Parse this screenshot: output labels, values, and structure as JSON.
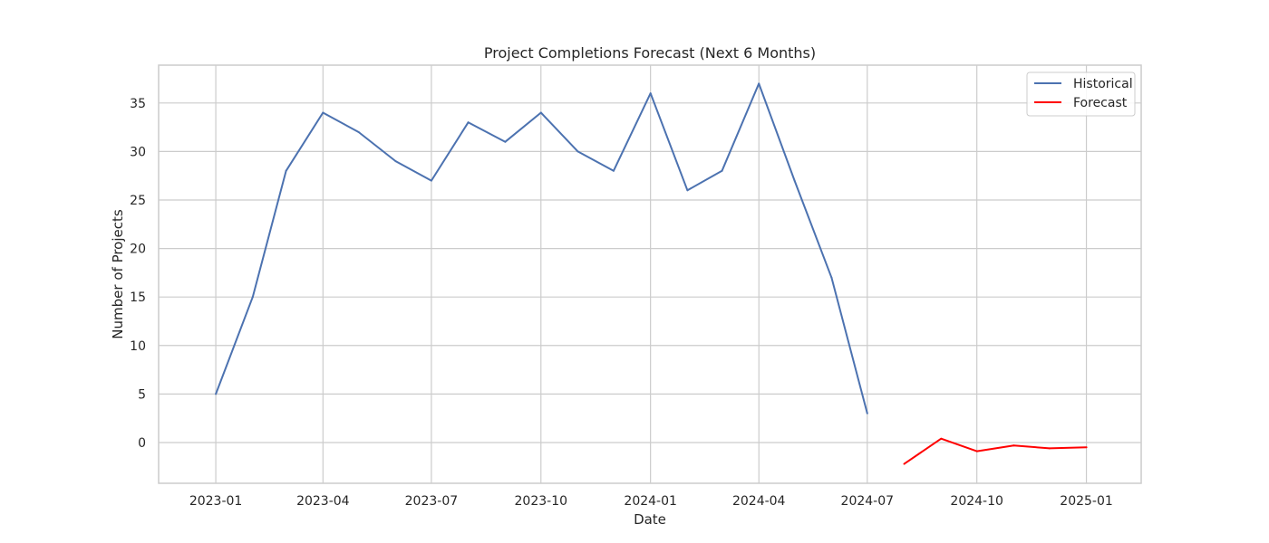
{
  "chart_data": {
    "type": "line",
    "title": "Project Completions Forecast (Next 6 Months)",
    "xlabel": "Date",
    "ylabel": "Number of Projects",
    "x_ticks": [
      "2023-01",
      "2023-04",
      "2023-07",
      "2023-10",
      "2024-01",
      "2024-04",
      "2024-07",
      "2024-10",
      "2025-01"
    ],
    "y_ticks": [
      0,
      5,
      10,
      15,
      20,
      25,
      30,
      35
    ],
    "xlim": [
      "2022-11-14",
      "2025-02-16"
    ],
    "ylim": [
      -4.2,
      38.9
    ],
    "grid": true,
    "legend_position": "top-right",
    "series": [
      {
        "name": "Historical",
        "color": "#4c72b0",
        "x": [
          "2023-01-01",
          "2023-02-01",
          "2023-03-01",
          "2023-04-01",
          "2023-05-01",
          "2023-06-01",
          "2023-07-01",
          "2023-08-01",
          "2023-09-01",
          "2023-10-01",
          "2023-11-01",
          "2023-12-01",
          "2024-01-01",
          "2024-02-01",
          "2024-03-01",
          "2024-04-01",
          "2024-05-01",
          "2024-06-01",
          "2024-07-01"
        ],
        "y": [
          5,
          15,
          28,
          34,
          32,
          29,
          27,
          33,
          31,
          34,
          30,
          28,
          36,
          26,
          28,
          37,
          27,
          17,
          3
        ]
      },
      {
        "name": "Forecast",
        "color": "#ff0000",
        "x": [
          "2024-08-01",
          "2024-09-01",
          "2024-10-01",
          "2024-11-01",
          "2024-12-01",
          "2025-01-01"
        ],
        "y": [
          -2.2,
          0.4,
          -0.9,
          -0.3,
          -0.6,
          -0.5
        ]
      }
    ]
  }
}
